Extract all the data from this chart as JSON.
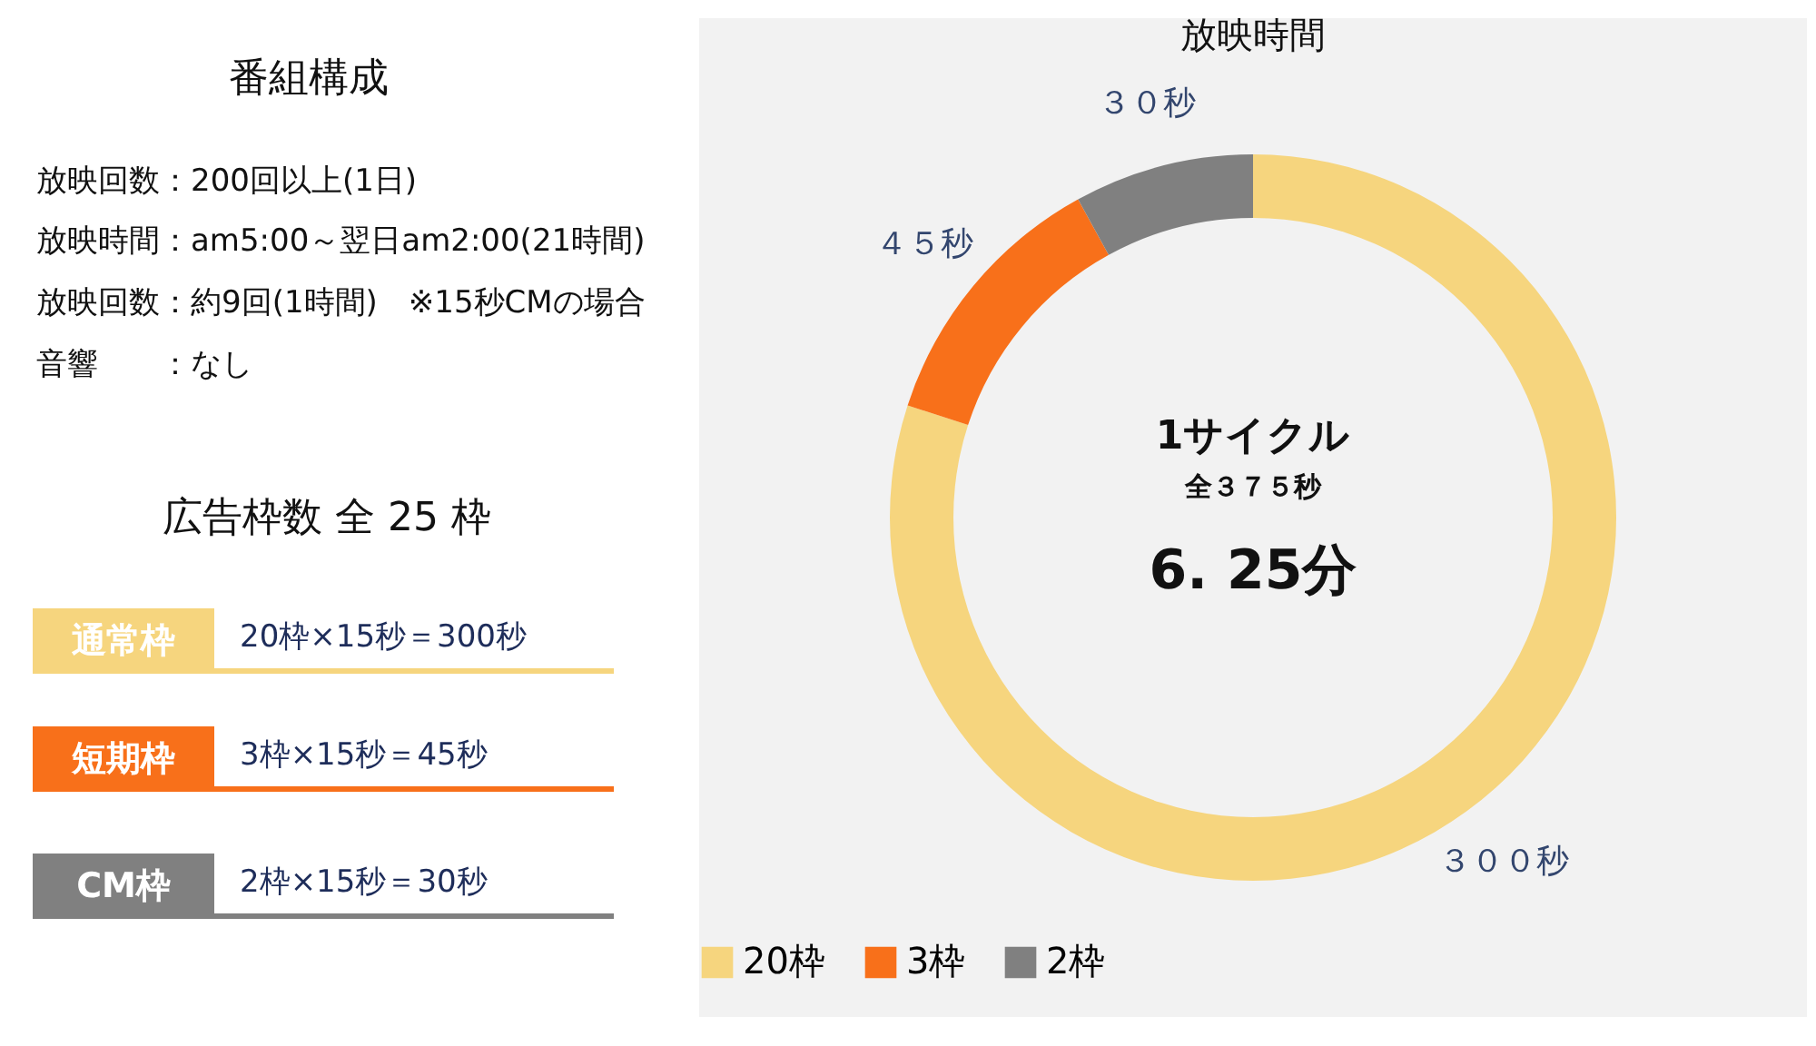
{
  "chart_data": [
    {
      "type": "other",
      "title": "番組構成",
      "annotations": [
        "放映回数：200回以上(1日)",
        "放映時間：am5:00～翌日am2:00(21時間)",
        "放映回数：約9回(1時間)　※15秒CMの場合",
        "音響　　：なし",
        "広告枠数 全 25 枠",
        "通常枠",
        "20枠×15秒＝300秒",
        "短期枠",
        "3枠×15秒＝45秒",
        "CM枠",
        "2枠×15秒＝30秒"
      ]
    },
    {
      "type": "donut",
      "title": "放映時間",
      "categories": [
        "20枠",
        "3枠",
        "2枠"
      ],
      "values": [
        300,
        45,
        30
      ],
      "colors": [
        "#f6d57e",
        "#f8701a",
        "#808080"
      ],
      "value_labels": [
        "３００秒",
        "４５秒",
        "３０秒"
      ],
      "legend": "bottom",
      "annotations": [
        "1サイクル",
        "全３７５秒",
        "6. 25分"
      ]
    }
  ]
}
